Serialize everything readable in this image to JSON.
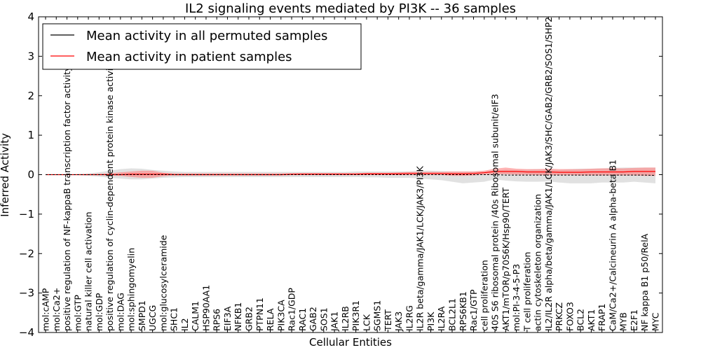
{
  "chart_data": {
    "type": "line",
    "title": "IL2 signaling events mediated by PI3K -- 36 samples",
    "xlabel": "Cellular Entities",
    "ylabel": "Inferred Activity",
    "ylim": [
      -4,
      4
    ],
    "yticks": [
      -4,
      -3,
      -2,
      -1,
      0,
      1,
      2,
      3,
      4
    ],
    "legend_position": "top-left",
    "colors": {
      "permuted": "#000000",
      "patient": "#ff0000",
      "patient_band": "#ff8080",
      "permuted_band": "#c8c8c8"
    },
    "categories": [
      "mol:cAMP",
      "mol:Ca2+",
      "positive regulation of NF-kappaB transcription factor activity",
      "mol:GTP",
      "natural killer cell activation",
      "mol:GDP",
      "positive regulation of cyclin-dependent protein kinase activity",
      "mol:DAG",
      "mol:sphingomyelin",
      "SMPD1",
      "UGCG",
      "mol:glucosylceramide",
      "SHC1",
      "IL2",
      "CALM1",
      "HSP90AA1",
      "RPS6",
      "EIF3A",
      "NFKB1",
      "GRB2",
      "PTPN11",
      "RELA",
      "PIK3CA",
      "Rac1/GDP",
      "RAC1",
      "GAB2",
      "SOS1",
      "JAK1",
      "IL2RB",
      "PIK3R1",
      "LCK",
      "SGMS1",
      "TERT",
      "JAK3",
      "IL2RG",
      "IL2R beta/gamma/JAK1/LCK/JAK3/PI3K",
      "PI3K",
      "IL2RA",
      "BCL2L1",
      "RPS6KB1",
      "Rac1/GTP",
      "cell proliferation",
      "40S S6 ribosomal protein /40s Ribosomal subunit/eIF3",
      "AKT1/mTOR/p70S6K/Hsp90/TERT",
      "mol:PI-3-4-5-P3",
      "T cell proliferation",
      "actin cytoskeleton organization",
      "IL2/IL2R alpha/beta/gamma/JAK1/LCK/JAK3/SHC/GAB2/GRB2/SOS1/SHP2",
      "PRKCZ",
      "FOXO3",
      "BCL2",
      "AKT1",
      "FRAP1",
      "CaM/Ca2+/Calcineurin A alpha-beta B1",
      "MYB",
      "E2F1",
      "NF kappa B1 p50/RelA",
      "MYC"
    ],
    "series": [
      {
        "name": "Mean activity in all permuted samples",
        "color": "#000000",
        "values": [
          0.0,
          0.0,
          0.0,
          0.0,
          0.0,
          0.0,
          0.0,
          0.0,
          0.0,
          0.0,
          0.0,
          0.0,
          0.0,
          0.0,
          0.0,
          0.0,
          0.0,
          0.0,
          0.0,
          0.0,
          0.0,
          0.0,
          0.0,
          0.0,
          0.0,
          0.0,
          0.0,
          0.0,
          0.0,
          0.0,
          0.0,
          0.0,
          0.0,
          0.0,
          0.0,
          0.0,
          0.0,
          0.0,
          0.0,
          0.0,
          0.0,
          0.0,
          0.0,
          -0.01,
          -0.01,
          -0.01,
          -0.01,
          -0.01,
          -0.01,
          -0.01,
          -0.01,
          -0.01,
          -0.01,
          -0.01,
          -0.01,
          -0.01,
          -0.01,
          -0.02
        ],
        "band_lower": [
          0.0,
          0.0,
          0.0,
          -0.01,
          -0.03,
          -0.05,
          -0.08,
          -0.1,
          -0.12,
          -0.12,
          -0.1,
          -0.08,
          -0.07,
          -0.06,
          -0.06,
          -0.06,
          -0.06,
          -0.06,
          -0.06,
          -0.06,
          -0.06,
          -0.06,
          -0.06,
          -0.06,
          -0.06,
          -0.06,
          -0.06,
          -0.06,
          -0.06,
          -0.06,
          -0.07,
          -0.07,
          -0.08,
          -0.08,
          -0.08,
          -0.1,
          -0.12,
          -0.14,
          -0.18,
          -0.22,
          -0.2,
          -0.18,
          -0.12,
          -0.15,
          -0.17,
          -0.18,
          -0.18,
          -0.17,
          -0.2,
          -0.22,
          -0.22,
          -0.22,
          -0.2,
          -0.2,
          -0.2,
          -0.18,
          -0.2,
          -0.22
        ],
        "band_upper": [
          0.0,
          0.0,
          0.0,
          0.01,
          0.03,
          0.06,
          0.1,
          0.14,
          0.16,
          0.15,
          0.12,
          0.1,
          0.08,
          0.07,
          0.07,
          0.07,
          0.07,
          0.07,
          0.07,
          0.07,
          0.07,
          0.07,
          0.07,
          0.07,
          0.07,
          0.07,
          0.07,
          0.07,
          0.07,
          0.08,
          0.08,
          0.08,
          0.08,
          0.08,
          0.08,
          0.1,
          0.1,
          0.09,
          0.08,
          0.08,
          0.08,
          0.08,
          0.1,
          0.13,
          0.12,
          0.13,
          0.14,
          0.13,
          0.12,
          0.14,
          0.15,
          0.15,
          0.16,
          0.17,
          0.18,
          0.18,
          0.18,
          0.18
        ]
      },
      {
        "name": "Mean activity in patient samples",
        "color": "#ff0000",
        "values": [
          0.0,
          0.0,
          0.0,
          0.0,
          0.0,
          0.0,
          0.0,
          0.0,
          0.01,
          0.01,
          0.01,
          0.01,
          0.0,
          0.0,
          0.0,
          0.0,
          0.0,
          0.0,
          0.0,
          0.0,
          0.0,
          0.0,
          0.0,
          0.01,
          0.01,
          0.01,
          0.01,
          0.01,
          0.01,
          0.01,
          0.02,
          0.02,
          0.02,
          0.02,
          0.03,
          0.03,
          0.03,
          0.03,
          0.02,
          0.02,
          0.03,
          0.05,
          0.08,
          0.08,
          0.08,
          0.07,
          0.07,
          0.07,
          0.06,
          0.06,
          0.06,
          0.07,
          0.07,
          0.07,
          0.07,
          0.08,
          0.08,
          0.08
        ],
        "band_lower": [
          0.0,
          0.0,
          0.0,
          0.0,
          0.0,
          -0.01,
          -0.02,
          -0.03,
          -0.06,
          -0.08,
          -0.08,
          -0.04,
          -0.02,
          -0.02,
          -0.02,
          -0.02,
          -0.02,
          -0.02,
          -0.02,
          -0.02,
          -0.02,
          -0.02,
          -0.02,
          -0.01,
          -0.01,
          -0.01,
          -0.01,
          -0.01,
          -0.01,
          -0.01,
          -0.01,
          -0.01,
          -0.01,
          -0.01,
          -0.01,
          -0.01,
          -0.01,
          -0.01,
          -0.03,
          -0.03,
          -0.02,
          0.0,
          0.01,
          0.01,
          0.0,
          0.0,
          -0.01,
          -0.01,
          -0.01,
          -0.01,
          -0.02,
          -0.02,
          -0.02,
          -0.02,
          -0.02,
          -0.02,
          -0.03,
          -0.03
        ],
        "band_upper": [
          0.0,
          0.0,
          0.0,
          0.0,
          0.01,
          0.02,
          0.03,
          0.06,
          0.08,
          0.1,
          0.1,
          0.05,
          0.03,
          0.03,
          0.03,
          0.03,
          0.03,
          0.03,
          0.03,
          0.03,
          0.03,
          0.03,
          0.03,
          0.03,
          0.04,
          0.04,
          0.04,
          0.04,
          0.04,
          0.04,
          0.05,
          0.05,
          0.05,
          0.06,
          0.07,
          0.07,
          0.07,
          0.07,
          0.08,
          0.08,
          0.08,
          0.1,
          0.15,
          0.18,
          0.15,
          0.14,
          0.14,
          0.15,
          0.14,
          0.14,
          0.14,
          0.15,
          0.16,
          0.16,
          0.16,
          0.17,
          0.18,
          0.18
        ]
      }
    ]
  }
}
